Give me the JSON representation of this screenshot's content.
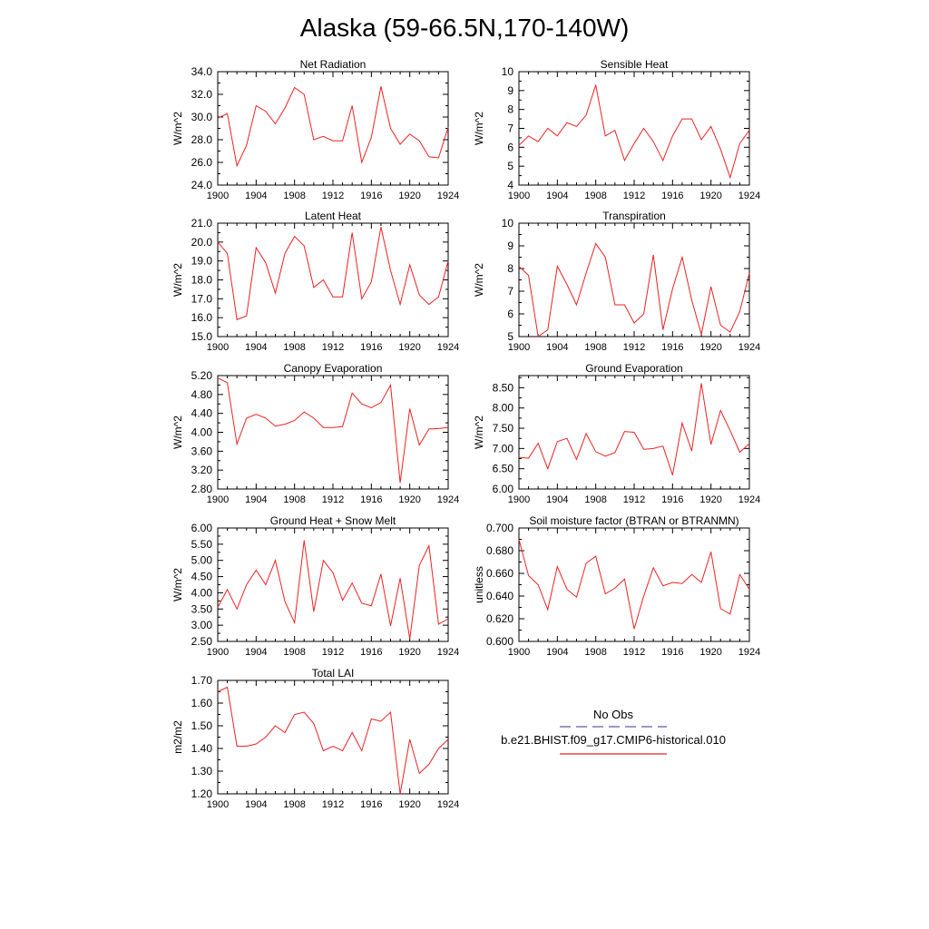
{
  "title": "Alaska (59-66.5N,170-140W)",
  "legend": {
    "obs_label": "No Obs",
    "model_label": "b.e21.BHIST.f09_g17.CMIP6-historical.010",
    "obs_color": "#5a5aa8",
    "model_color": "#ee2222"
  },
  "chart_data": [
    {
      "type": "line",
      "title": "Net Radiation",
      "ylabel": "W/m^2",
      "ylim": [
        24.0,
        34.0
      ],
      "yticks": [
        "24.0",
        "26.0",
        "28.0",
        "30.0",
        "32.0",
        "34.0"
      ],
      "xlim": [
        1900,
        1924
      ],
      "xticks": [
        "1900",
        "1904",
        "1908",
        "1912",
        "1916",
        "1920",
        "1924"
      ],
      "x": [
        1900,
        1901,
        1902,
        1903,
        1904,
        1905,
        1906,
        1907,
        1908,
        1909,
        1910,
        1911,
        1912,
        1913,
        1914,
        1915,
        1916,
        1917,
        1918,
        1919,
        1920,
        1921,
        1922,
        1923,
        1924
      ],
      "series": [
        {
          "values": [
            29.9,
            30.3,
            25.7,
            27.5,
            31.0,
            30.5,
            29.4,
            30.8,
            32.6,
            32.0,
            28.0,
            28.3,
            27.9,
            27.9,
            31.0,
            26.0,
            28.2,
            32.7,
            29.0,
            27.6,
            28.5,
            27.9,
            26.5,
            26.4,
            29.1
          ]
        }
      ]
    },
    {
      "type": "line",
      "title": "Sensible Heat",
      "ylabel": "W/m^2",
      "ylim": [
        4,
        10
      ],
      "yticks": [
        "4",
        "5",
        "6",
        "7",
        "8",
        "9",
        "10"
      ],
      "xlim": [
        1900,
        1924
      ],
      "xticks": [
        "1900",
        "1904",
        "1908",
        "1912",
        "1916",
        "1920",
        "1924"
      ],
      "x": [
        1900,
        1901,
        1902,
        1903,
        1904,
        1905,
        1906,
        1907,
        1908,
        1909,
        1910,
        1911,
        1912,
        1913,
        1914,
        1915,
        1916,
        1917,
        1918,
        1919,
        1920,
        1921,
        1922,
        1923,
        1924
      ],
      "series": [
        {
          "values": [
            6.1,
            6.6,
            6.3,
            7.0,
            6.6,
            7.3,
            7.1,
            7.7,
            9.3,
            6.6,
            6.9,
            5.3,
            6.2,
            7.0,
            6.3,
            5.3,
            6.6,
            7.5,
            7.5,
            6.4,
            7.1,
            5.9,
            4.4,
            6.2,
            6.9
          ]
        }
      ]
    },
    {
      "type": "line",
      "title": "Latent Heat",
      "ylabel": "W/m^2",
      "ylim": [
        15.0,
        21.0
      ],
      "yticks": [
        "15.0",
        "16.0",
        "17.0",
        "18.0",
        "19.0",
        "20.0",
        "21.0"
      ],
      "xlim": [
        1900,
        1924
      ],
      "xticks": [
        "1900",
        "1904",
        "1908",
        "1912",
        "1916",
        "1920",
        "1924"
      ],
      "x": [
        1900,
        1901,
        1902,
        1903,
        1904,
        1905,
        1906,
        1907,
        1908,
        1909,
        1910,
        1911,
        1912,
        1913,
        1914,
        1915,
        1916,
        1917,
        1918,
        1919,
        1920,
        1921,
        1922,
        1923,
        1924
      ],
      "series": [
        {
          "values": [
            20.0,
            19.4,
            15.9,
            16.1,
            19.7,
            18.9,
            17.3,
            19.4,
            20.3,
            19.8,
            17.6,
            18.0,
            17.1,
            17.1,
            20.5,
            17.0,
            17.9,
            20.8,
            18.5,
            16.7,
            18.8,
            17.2,
            16.7,
            17.1,
            19.0
          ]
        }
      ]
    },
    {
      "type": "line",
      "title": "Transpiration",
      "ylabel": "W/m^2",
      "ylim": [
        5,
        10
      ],
      "yticks": [
        "5",
        "6",
        "7",
        "8",
        "9",
        "10"
      ],
      "xlim": [
        1900,
        1924
      ],
      "xticks": [
        "1900",
        "1904",
        "1908",
        "1912",
        "1916",
        "1920",
        "1924"
      ],
      "x": [
        1900,
        1901,
        1902,
        1903,
        1904,
        1905,
        1906,
        1907,
        1908,
        1909,
        1910,
        1911,
        1912,
        1913,
        1914,
        1915,
        1916,
        1917,
        1918,
        1919,
        1920,
        1921,
        1922,
        1923,
        1924
      ],
      "series": [
        {
          "values": [
            8.1,
            7.7,
            5.0,
            5.3,
            8.1,
            7.3,
            6.4,
            7.8,
            9.1,
            8.5,
            6.4,
            6.4,
            5.6,
            6.0,
            8.6,
            5.3,
            7.1,
            8.5,
            6.6,
            5.1,
            7.2,
            5.5,
            5.2,
            6.1,
            7.8
          ]
        }
      ]
    },
    {
      "type": "line",
      "title": "Canopy Evaporation",
      "ylabel": "W/m^2",
      "ylim": [
        2.8,
        5.2
      ],
      "yticks": [
        "2.80",
        "3.20",
        "3.60",
        "4.00",
        "4.40",
        "4.80",
        "5.20"
      ],
      "xlim": [
        1900,
        1924
      ],
      "xticks": [
        "1900",
        "1904",
        "1908",
        "1912",
        "1916",
        "1920",
        "1924"
      ],
      "x": [
        1900,
        1901,
        1902,
        1903,
        1904,
        1905,
        1906,
        1907,
        1908,
        1909,
        1910,
        1911,
        1912,
        1913,
        1914,
        1915,
        1916,
        1917,
        1918,
        1919,
        1920,
        1921,
        1922,
        1923,
        1924
      ],
      "series": [
        {
          "values": [
            5.15,
            5.05,
            3.75,
            4.3,
            4.38,
            4.3,
            4.13,
            4.17,
            4.25,
            4.43,
            4.3,
            4.1,
            4.1,
            4.12,
            4.83,
            4.6,
            4.52,
            4.63,
            5.0,
            2.93,
            4.5,
            3.73,
            4.07,
            4.08,
            4.1
          ]
        }
      ]
    },
    {
      "type": "line",
      "title": "Ground Evaporation",
      "ylabel": "W/m^2",
      "ylim": [
        6.0,
        8.8
      ],
      "yticks": [
        "6.00",
        "6.50",
        "7.00",
        "7.50",
        "8.00",
        "8.50"
      ],
      "xlim": [
        1900,
        1924
      ],
      "xticks": [
        "1900",
        "1904",
        "1908",
        "1912",
        "1916",
        "1920",
        "1924"
      ],
      "x": [
        1900,
        1901,
        1902,
        1903,
        1904,
        1905,
        1906,
        1907,
        1908,
        1909,
        1910,
        1911,
        1912,
        1913,
        1914,
        1915,
        1916,
        1917,
        1918,
        1919,
        1920,
        1921,
        1922,
        1923,
        1924
      ],
      "series": [
        {
          "values": [
            6.78,
            6.76,
            7.13,
            6.5,
            7.17,
            7.25,
            6.73,
            7.37,
            6.92,
            6.81,
            6.9,
            7.42,
            7.4,
            6.98,
            7.0,
            7.06,
            6.34,
            7.63,
            6.94,
            8.61,
            7.1,
            7.94,
            7.44,
            6.91,
            7.12
          ]
        }
      ]
    },
    {
      "type": "line",
      "title": "Ground Heat + Snow Melt",
      "ylabel": "W/m^2",
      "ylim": [
        2.5,
        6.0
      ],
      "yticks": [
        "2.50",
        "3.00",
        "3.50",
        "4.00",
        "4.50",
        "5.00",
        "5.50",
        "6.00"
      ],
      "xlim": [
        1900,
        1924
      ],
      "xticks": [
        "1900",
        "1904",
        "1908",
        "1912",
        "1916",
        "1920",
        "1924"
      ],
      "x": [
        1900,
        1901,
        1902,
        1903,
        1904,
        1905,
        1906,
        1907,
        1908,
        1909,
        1910,
        1911,
        1912,
        1913,
        1914,
        1915,
        1916,
        1917,
        1918,
        1919,
        1920,
        1921,
        1922,
        1923,
        1924
      ],
      "series": [
        {
          "values": [
            3.55,
            4.1,
            3.5,
            4.25,
            4.7,
            4.25,
            5.0,
            3.73,
            3.08,
            5.62,
            3.42,
            5.0,
            4.62,
            3.77,
            4.3,
            3.68,
            3.6,
            4.58,
            2.98,
            4.45,
            2.58,
            4.85,
            5.45,
            3.03,
            3.2
          ]
        }
      ]
    },
    {
      "type": "line",
      "title": "Soil moisture factor (BTRAN or BTRANMN)",
      "ylabel": "unitless",
      "ylim": [
        0.6,
        0.7
      ],
      "yticks": [
        "0.600",
        "0.620",
        "0.640",
        "0.660",
        "0.680",
        "0.700"
      ],
      "xlim": [
        1900,
        1924
      ],
      "xticks": [
        "1900",
        "1904",
        "1908",
        "1912",
        "1916",
        "1920",
        "1924"
      ],
      "x": [
        1900,
        1901,
        1902,
        1903,
        1904,
        1905,
        1906,
        1907,
        1908,
        1909,
        1910,
        1911,
        1912,
        1913,
        1914,
        1915,
        1916,
        1917,
        1918,
        1919,
        1920,
        1921,
        1922,
        1923,
        1924
      ],
      "series": [
        {
          "values": [
            0.69,
            0.658,
            0.65,
            0.628,
            0.666,
            0.646,
            0.639,
            0.669,
            0.675,
            0.642,
            0.647,
            0.655,
            0.611,
            0.64,
            0.665,
            0.649,
            0.652,
            0.651,
            0.659,
            0.652,
            0.679,
            0.629,
            0.624,
            0.659,
            0.646
          ]
        }
      ]
    },
    {
      "type": "line",
      "title": "Total LAI",
      "ylabel": "m2/m2",
      "ylim": [
        1.2,
        1.7
      ],
      "yticks": [
        "1.20",
        "1.30",
        "1.40",
        "1.50",
        "1.60",
        "1.70"
      ],
      "xlim": [
        1900,
        1924
      ],
      "xticks": [
        "1900",
        "1904",
        "1908",
        "1912",
        "1916",
        "1920",
        "1924"
      ],
      "x": [
        1900,
        1901,
        1902,
        1903,
        1904,
        1905,
        1906,
        1907,
        1908,
        1909,
        1910,
        1911,
        1912,
        1913,
        1914,
        1915,
        1916,
        1917,
        1918,
        1919,
        1920,
        1921,
        1922,
        1923,
        1924
      ],
      "series": [
        {
          "values": [
            1.65,
            1.67,
            1.41,
            1.41,
            1.42,
            1.45,
            1.5,
            1.47,
            1.55,
            1.56,
            1.51,
            1.39,
            1.41,
            1.39,
            1.47,
            1.39,
            1.53,
            1.52,
            1.56,
            1.2,
            1.44,
            1.29,
            1.33,
            1.4,
            1.44
          ]
        }
      ]
    }
  ]
}
